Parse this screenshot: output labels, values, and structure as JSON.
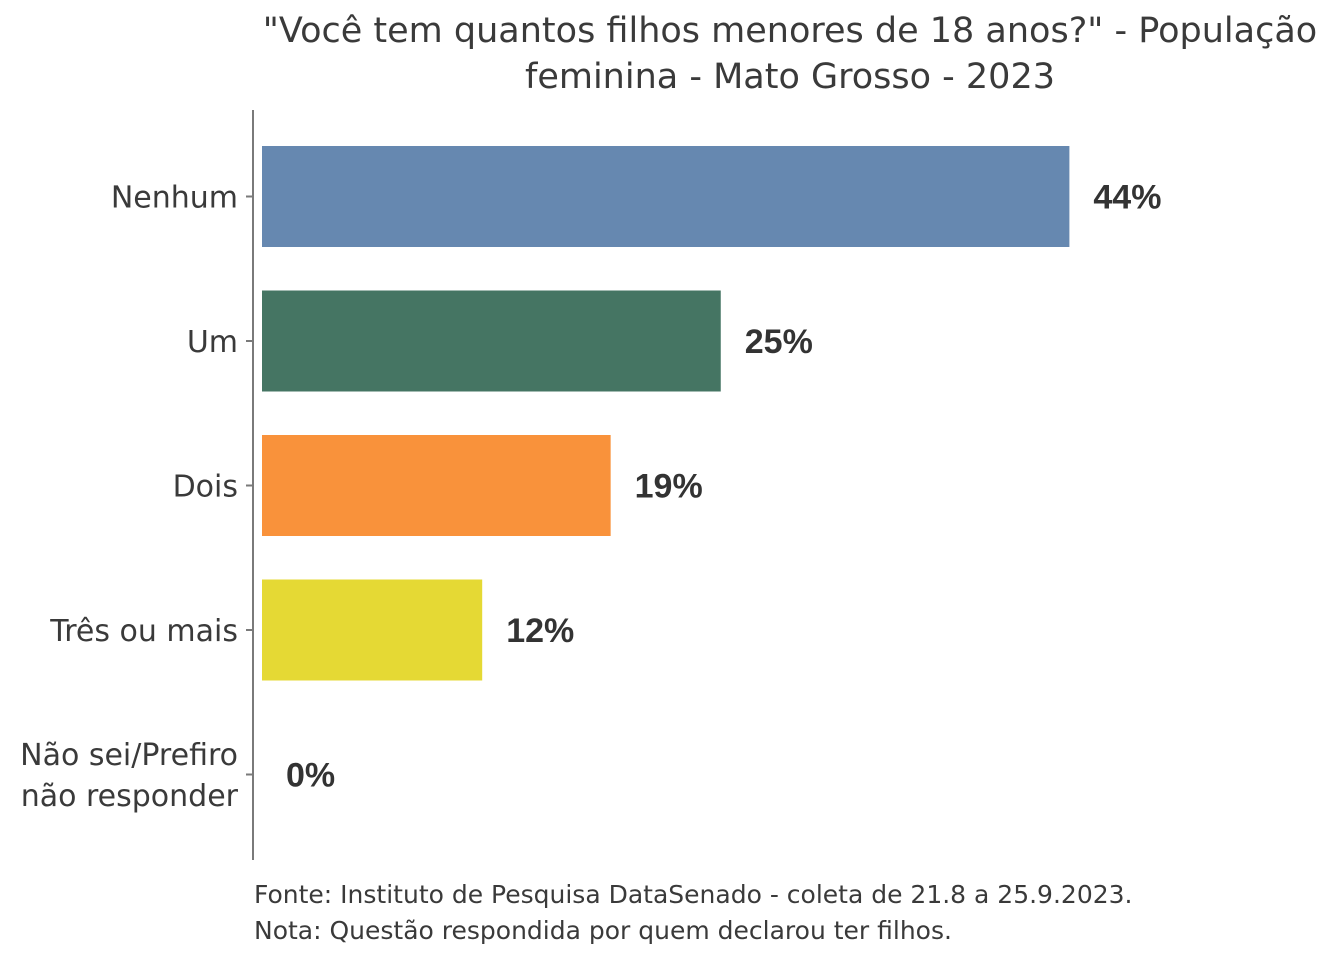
{
  "chart_data": {
    "type": "bar",
    "orientation": "horizontal",
    "title_lines": [
      "\"Você tem quantos filhos menores de 18 anos?\" - População",
      "feminina - Mato Grosso - 2023"
    ],
    "categories": [
      [
        "Nenhum"
      ],
      [
        "Um"
      ],
      [
        "Dois"
      ],
      [
        "Três ou mais"
      ],
      [
        "Não sei/Prefiro",
        "não responder"
      ]
    ],
    "values": [
      44,
      25,
      19,
      12,
      0
    ],
    "value_labels": [
      "44%",
      "25%",
      "19%",
      "12%",
      "0%"
    ],
    "colors": [
      "#6688b0",
      "#457563",
      "#f9923b",
      "#e5d934",
      "#cccccc"
    ],
    "xlim": [
      0,
      50
    ],
    "grid": false,
    "legend": "none",
    "footnotes": [
      "Fonte: Instituto de Pesquisa DataSenado - coleta de 21.8 a 25.9.2023.",
      "Nota: Questão respondida por quem declarou ter filhos."
    ]
  }
}
